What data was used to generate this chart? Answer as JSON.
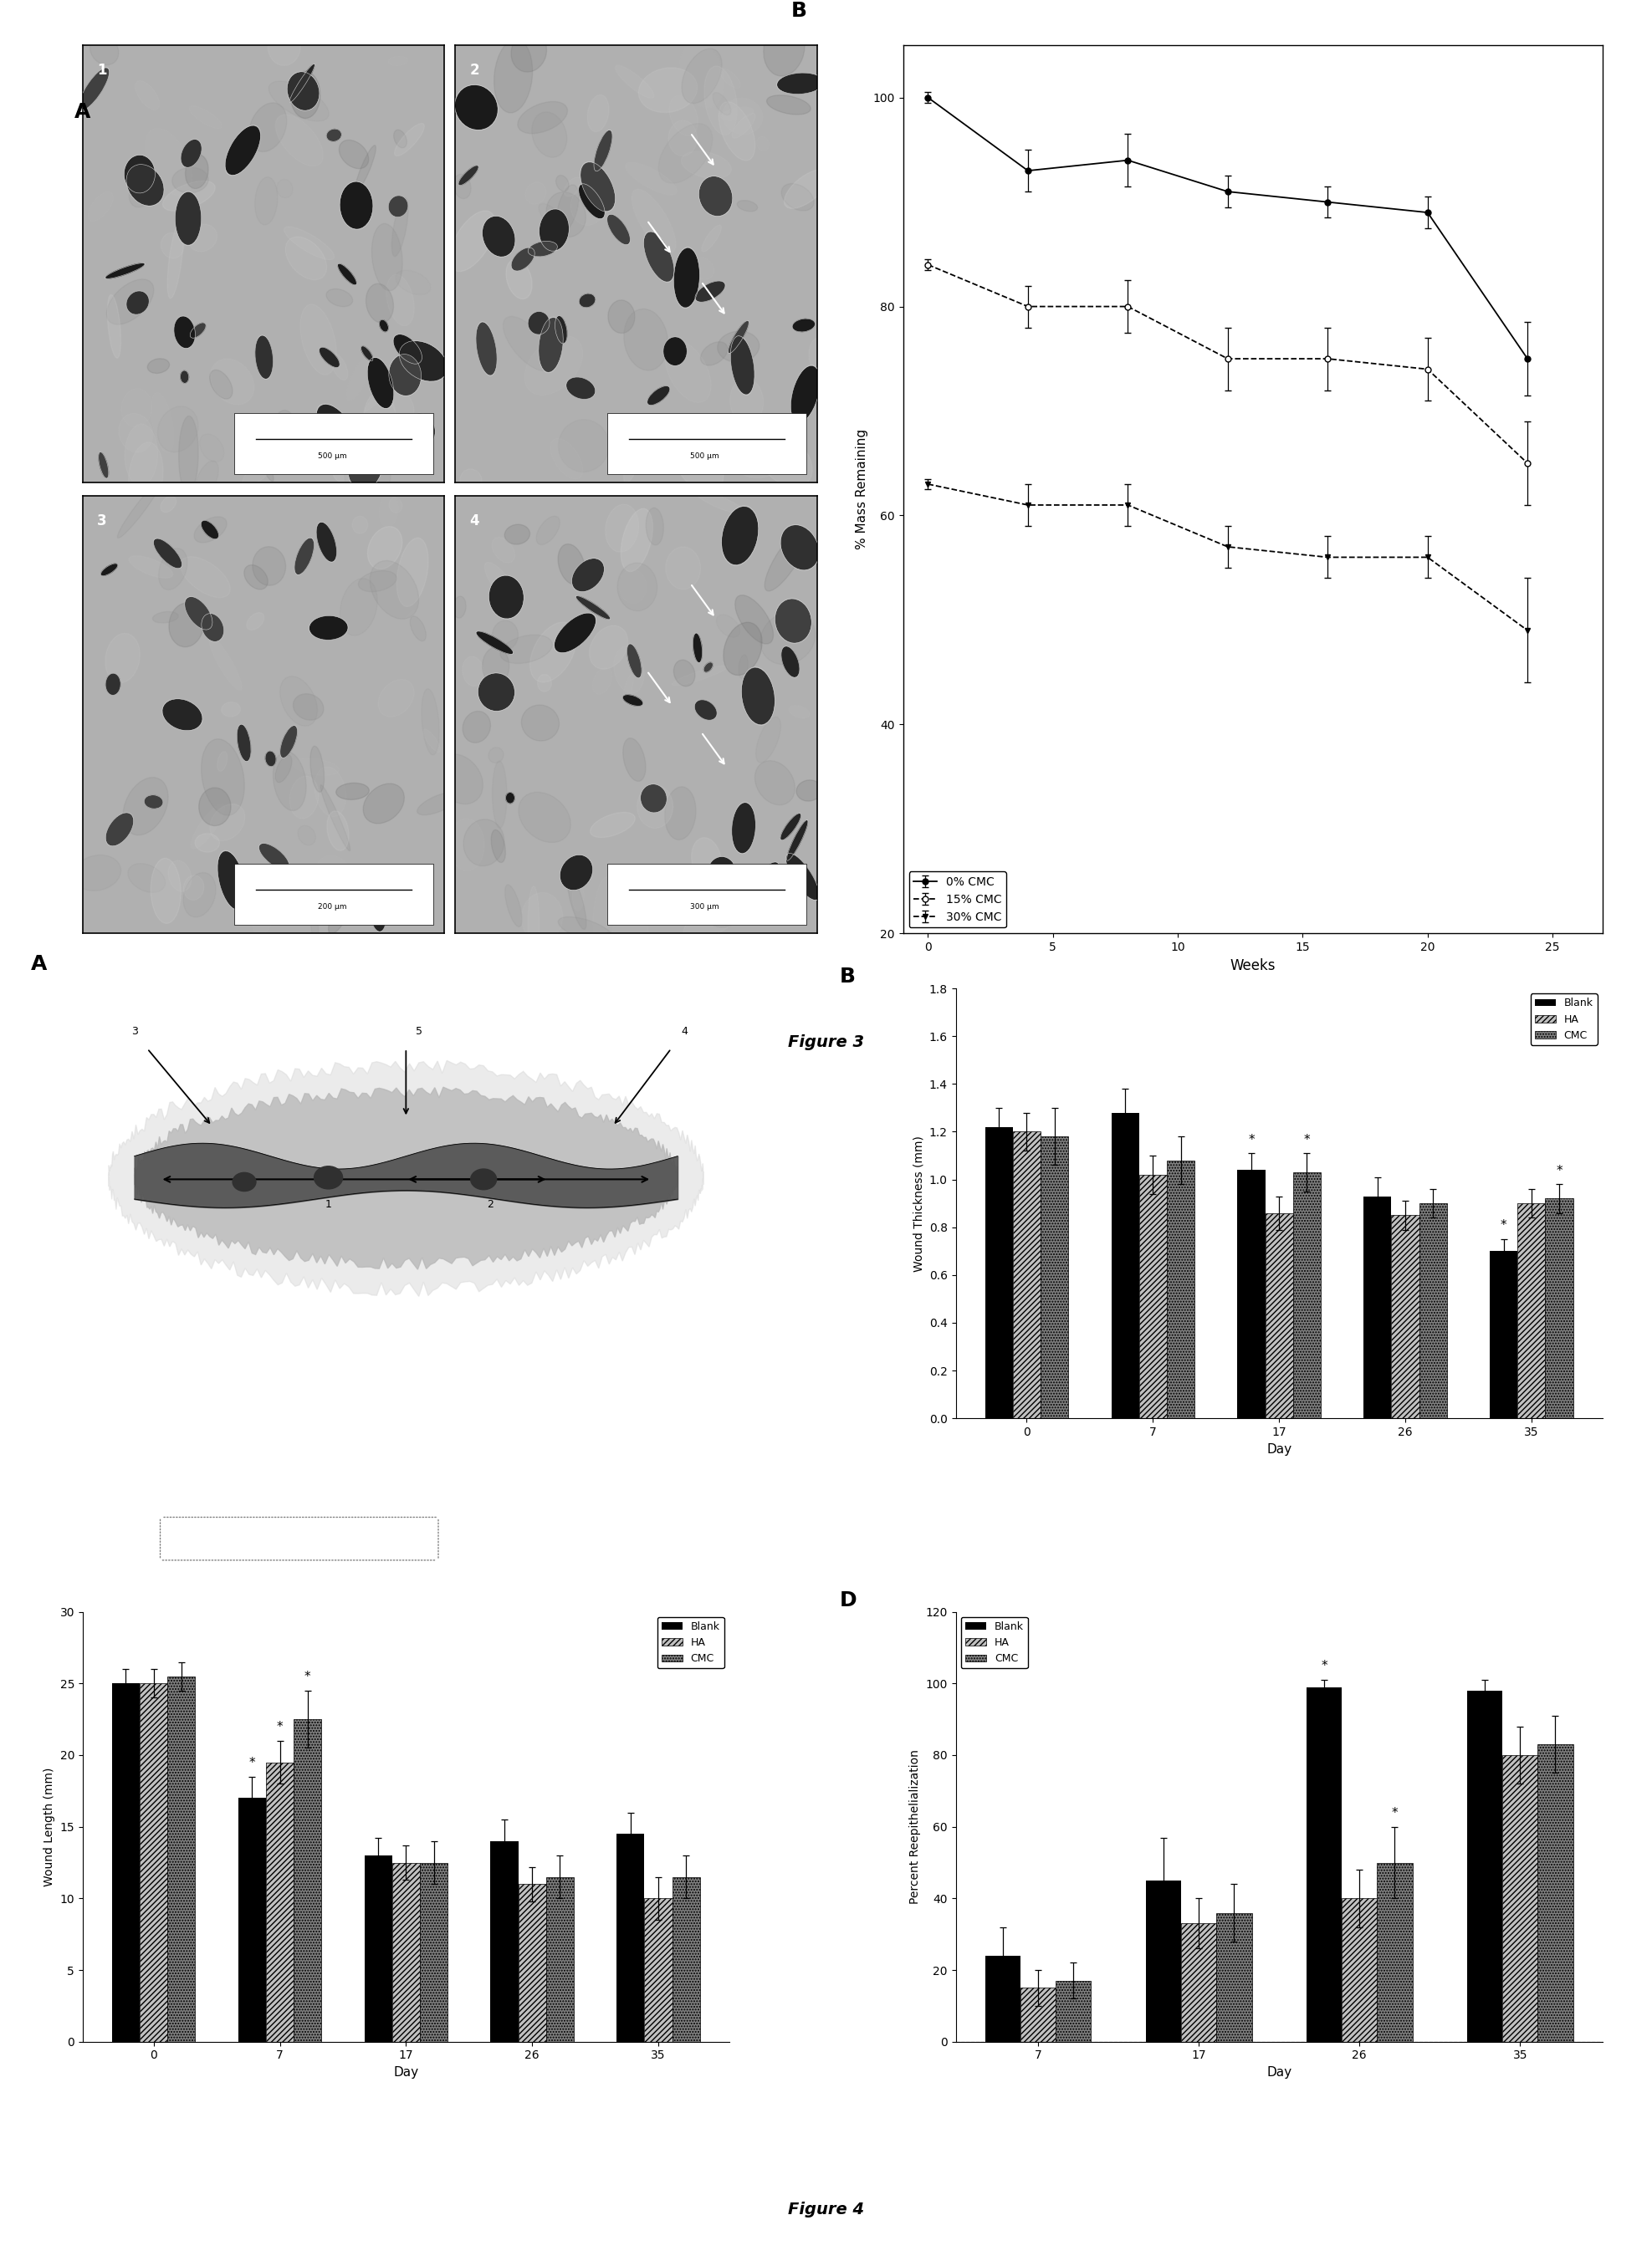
{
  "fig3_B": {
    "weeks": [
      0,
      4,
      8,
      12,
      16,
      20,
      24
    ],
    "cmc0": [
      100,
      93,
      94,
      91,
      90,
      89,
      75
    ],
    "cmc0_err": [
      0.5,
      2.0,
      2.5,
      1.5,
      1.5,
      1.5,
      3.5
    ],
    "cmc15": [
      84,
      80,
      80,
      75,
      75,
      74,
      65
    ],
    "cmc15_err": [
      0.5,
      2.0,
      2.5,
      3.0,
      3.0,
      3.0,
      4.0
    ],
    "cmc30": [
      63,
      61,
      61,
      57,
      56,
      56,
      49
    ],
    "cmc30_err": [
      0.5,
      2.0,
      2.0,
      2.0,
      2.0,
      2.0,
      5.0
    ],
    "ylabel": "% Mass Remaining",
    "xlabel": "Weeks",
    "ylim": [
      20,
      105
    ],
    "yticks": [
      20,
      40,
      60,
      80,
      100
    ],
    "xticks": [
      0,
      5,
      10,
      15,
      20,
      25
    ]
  },
  "fig4_B": {
    "days": [
      0,
      7,
      17,
      26,
      35
    ],
    "blank": [
      1.22,
      1.28,
      1.04,
      0.93,
      0.7
    ],
    "blank_err": [
      0.08,
      0.1,
      0.07,
      0.08,
      0.05
    ],
    "ha": [
      1.2,
      1.02,
      0.86,
      0.85,
      0.9
    ],
    "ha_err": [
      0.08,
      0.08,
      0.07,
      0.06,
      0.06
    ],
    "cmc": [
      1.18,
      1.08,
      1.03,
      0.9,
      0.92
    ],
    "cmc_err": [
      0.12,
      0.1,
      0.08,
      0.06,
      0.06
    ],
    "ylabel": "Wound Thickness (mm)",
    "xlabel": "Day",
    "ylim": [
      0.0,
      1.8
    ],
    "yticks": [
      0.0,
      0.2,
      0.4,
      0.6,
      0.8,
      1.0,
      1.2,
      1.4,
      1.6,
      1.8
    ],
    "xticks": [
      0,
      7,
      17,
      26,
      35
    ],
    "star_days": [
      17,
      35
    ]
  },
  "fig4_C": {
    "days": [
      0,
      7,
      17,
      26,
      35
    ],
    "blank": [
      25.0,
      17.0,
      13.0,
      14.0,
      14.5
    ],
    "blank_err": [
      1.0,
      1.5,
      1.2,
      1.5,
      1.5
    ],
    "ha": [
      25.0,
      19.5,
      12.5,
      11.0,
      10.0
    ],
    "ha_err": [
      1.0,
      1.5,
      1.2,
      1.2,
      1.5
    ],
    "cmc": [
      25.5,
      22.5,
      12.5,
      11.5,
      11.5
    ],
    "cmc_err": [
      1.0,
      2.0,
      1.5,
      1.5,
      1.5
    ],
    "ylabel": "Wound Length (mm)",
    "xlabel": "Day",
    "ylim": [
      0,
      30
    ],
    "yticks": [
      0,
      5,
      10,
      15,
      20,
      25,
      30
    ],
    "xticks": [
      0,
      7,
      17,
      26,
      35
    ],
    "star_days": [
      7
    ]
  },
  "fig4_D": {
    "days": [
      7,
      17,
      26,
      35
    ],
    "blank": [
      24,
      45,
      99,
      98
    ],
    "blank_err": [
      8,
      12,
      2,
      3
    ],
    "ha": [
      15,
      33,
      40,
      80
    ],
    "ha_err": [
      5,
      7,
      8,
      8
    ],
    "cmc": [
      17,
      36,
      50,
      83
    ],
    "cmc_err": [
      5,
      8,
      10,
      8
    ],
    "ylabel": "Percent Reepithelialization",
    "xlabel": "Day",
    "ylim": [
      0,
      120
    ],
    "yticks": [
      0,
      20,
      40,
      60,
      80,
      100,
      120
    ],
    "xticks": [
      7,
      17,
      26,
      35
    ],
    "star_days": [
      26
    ]
  },
  "bar_width": 0.22,
  "fig3_label": "Figure 3",
  "fig4_label": "Figure 4",
  "scale_bars": [
    "500 μm",
    "500 μm",
    "200 μm",
    "300 μm"
  ],
  "img_bg": "#b0b0b0",
  "img_pore_dark": "#303030",
  "img_pore_mid": "#606060"
}
